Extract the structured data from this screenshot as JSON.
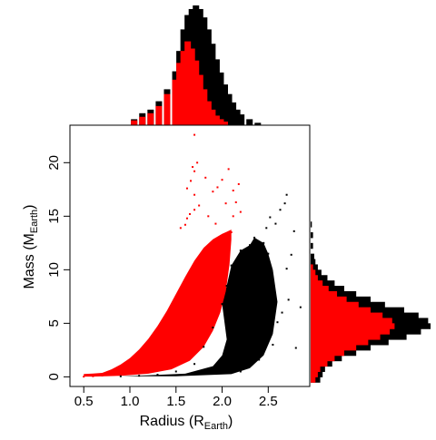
{
  "colors": {
    "set_a": "#ff0000",
    "set_b": "#000000"
  },
  "chart_data": [
    {
      "type": "scatter",
      "xlabel": "Radius",
      "xlabel_sub": "Earth",
      "ylabel": "Mass",
      "ylabel_sub": "Earth",
      "xlim": [
        0.35,
        2.95
      ],
      "ylim": [
        -0.9,
        23.5
      ],
      "xticks": [
        0.5,
        1.0,
        1.5,
        2.0,
        2.5
      ],
      "xtick_labels": [
        "0.5",
        "1.0",
        "1.5",
        "2.0",
        "2.5"
      ],
      "yticks": [
        0,
        5,
        10,
        15,
        20
      ],
      "ytick_labels": [
        "0",
        "5",
        "10",
        "15",
        "20"
      ],
      "grid": false,
      "series": [
        {
          "color": "#ff0000",
          "points": [
            [
              0.5,
              0.02
            ],
            [
              0.6,
              0.06
            ],
            [
              0.7,
              0.12
            ],
            [
              0.8,
              0.45
            ],
            [
              0.9,
              0.9
            ],
            [
              1.0,
              1.5
            ],
            [
              1.1,
              2.3
            ],
            [
              1.2,
              3.3
            ],
            [
              1.3,
              4.5
            ],
            [
              1.4,
              5.9
            ],
            [
              1.5,
              7.5
            ],
            [
              1.6,
              9.1
            ],
            [
              1.7,
              10.6
            ],
            [
              1.8,
              11.8
            ],
            [
              1.9,
              12.6
            ],
            [
              2.0,
              13.1
            ],
            [
              2.05,
              13.3
            ],
            [
              2.1,
              13.5
            ],
            [
              1.55,
              13.9
            ],
            [
              1.6,
              14.2
            ],
            [
              1.62,
              14.8
            ],
            [
              1.65,
              15.2
            ],
            [
              1.7,
              15.6
            ],
            [
              1.75,
              16.0
            ],
            [
              1.7,
              17.0
            ],
            [
              1.62,
              17.6
            ],
            [
              1.66,
              18.3
            ],
            [
              1.7,
              19.2
            ],
            [
              1.68,
              19.6
            ],
            [
              1.73,
              20.0
            ],
            [
              1.82,
              18.6
            ],
            [
              1.9,
              17.3
            ],
            [
              1.95,
              17.7
            ],
            [
              2.0,
              18.4
            ],
            [
              2.07,
              19.4
            ],
            [
              2.12,
              17.4
            ],
            [
              2.15,
              16.3
            ],
            [
              2.18,
              18.0
            ],
            [
              2.2,
              15.4
            ],
            [
              2.12,
              15.0
            ],
            [
              2.04,
              16.2
            ],
            [
              1.85,
              15.0
            ],
            [
              1.93,
              14.3
            ],
            [
              1.7,
              22.6
            ]
          ]
        },
        {
          "color": "#000000",
          "points": [
            [
              0.9,
              0.05
            ],
            [
              1.1,
              0.1
            ],
            [
              1.3,
              0.2
            ],
            [
              1.5,
              0.5
            ],
            [
              1.7,
              1.2
            ],
            [
              1.8,
              2.8
            ],
            [
              1.9,
              4.6
            ],
            [
              2.0,
              6.8
            ],
            [
              2.05,
              8.5
            ],
            [
              2.1,
              10.4
            ],
            [
              2.2,
              11.8
            ],
            [
              2.3,
              12.3
            ],
            [
              2.35,
              13.0
            ],
            [
              2.45,
              12.5
            ],
            [
              2.5,
              11.5
            ],
            [
              2.2,
              0.5
            ],
            [
              2.3,
              1.0
            ],
            [
              2.4,
              1.6
            ],
            [
              2.55,
              3.0
            ],
            [
              2.6,
              5.1
            ],
            [
              2.65,
              6.0
            ],
            [
              2.72,
              7.2
            ],
            [
              2.7,
              10.1
            ],
            [
              2.58,
              14.3
            ],
            [
              2.63,
              15.6
            ],
            [
              2.7,
              17.0
            ],
            [
              2.75,
              11.4
            ],
            [
              2.8,
              2.7
            ],
            [
              2.78,
              13.6
            ],
            [
              2.68,
              16.2
            ],
            [
              2.52,
              14.9
            ],
            [
              2.48,
              13.9
            ],
            [
              2.85,
              6.5
            ]
          ]
        }
      ]
    },
    {
      "type": "bar",
      "orientation": "vertical",
      "axis": "Radius",
      "x_range": [
        0.55,
        3.25
      ],
      "bin_width": 0.1,
      "series": [
        {
          "color": "#000000",
          "bins": [
            [
              0.8,
              0.05
            ],
            [
              0.9,
              0.1
            ],
            [
              1.0,
              0.13
            ],
            [
              1.1,
              0.2
            ],
            [
              1.2,
              0.3
            ],
            [
              1.3,
              0.45
            ],
            [
              1.35,
              0.62
            ],
            [
              1.4,
              0.8
            ],
            [
              1.45,
              0.92
            ],
            [
              1.5,
              0.97
            ],
            [
              1.55,
              1.0
            ],
            [
              1.6,
              0.97
            ],
            [
              1.65,
              0.9
            ],
            [
              1.7,
              0.8
            ],
            [
              1.75,
              0.68
            ],
            [
              1.8,
              0.55
            ],
            [
              1.85,
              0.44
            ],
            [
              1.9,
              0.34
            ],
            [
              1.95,
              0.26
            ],
            [
              2.0,
              0.19
            ],
            [
              2.05,
              0.13
            ],
            [
              2.1,
              0.09
            ],
            [
              2.2,
              0.05
            ],
            [
              2.3,
              0.02
            ]
          ]
        },
        {
          "color": "#ff0000",
          "bins": [
            [
              0.8,
              0.04
            ],
            [
              0.9,
              0.07
            ],
            [
              1.0,
              0.1
            ],
            [
              1.1,
              0.16
            ],
            [
              1.2,
              0.26
            ],
            [
              1.3,
              0.38
            ],
            [
              1.35,
              0.52
            ],
            [
              1.4,
              0.62
            ],
            [
              1.45,
              0.7
            ],
            [
              1.5,
              0.64
            ],
            [
              1.55,
              0.54
            ],
            [
              1.6,
              0.42
            ],
            [
              1.65,
              0.3
            ],
            [
              1.7,
              0.2
            ],
            [
              1.75,
              0.13
            ],
            [
              1.8,
              0.08
            ],
            [
              1.85,
              0.05
            ],
            [
              1.9,
              0.03
            ]
          ]
        }
      ]
    },
    {
      "type": "bar",
      "orientation": "horizontal",
      "axis": "Mass",
      "y_range": [
        -0.9,
        23.5
      ],
      "bin_width": 0.5,
      "series": [
        {
          "color": "#000000",
          "bins": [
            [
              -0.25,
              0.08
            ],
            [
              0.25,
              0.1
            ],
            [
              0.75,
              0.12
            ],
            [
              1.25,
              0.18
            ],
            [
              1.75,
              0.26
            ],
            [
              2.25,
              0.38
            ],
            [
              2.75,
              0.5
            ],
            [
              3.25,
              0.65
            ],
            [
              3.75,
              0.8
            ],
            [
              4.25,
              0.92
            ],
            [
              4.75,
              1.0
            ],
            [
              5.25,
              0.98
            ],
            [
              5.75,
              0.9
            ],
            [
              6.25,
              0.78
            ],
            [
              6.75,
              0.62
            ],
            [
              7.25,
              0.5
            ],
            [
              7.75,
              0.38
            ],
            [
              8.25,
              0.28
            ],
            [
              8.75,
              0.2
            ],
            [
              9.25,
              0.14
            ],
            [
              9.75,
              0.09
            ],
            [
              10.25,
              0.06
            ],
            [
              10.75,
              0.04
            ],
            [
              11.25,
              0.03
            ],
            [
              12.25,
              0.02
            ],
            [
              13.25,
              0.02
            ],
            [
              14.25,
              0.01
            ]
          ]
        },
        {
          "color": "#ff0000",
          "bins": [
            [
              -0.25,
              0.04
            ],
            [
              0.25,
              0.06
            ],
            [
              0.75,
              0.08
            ],
            [
              1.25,
              0.14
            ],
            [
              1.75,
              0.2
            ],
            [
              2.25,
              0.28
            ],
            [
              2.75,
              0.38
            ],
            [
              3.25,
              0.48
            ],
            [
              3.75,
              0.58
            ],
            [
              4.25,
              0.66
            ],
            [
              4.75,
              0.7
            ],
            [
              5.25,
              0.68
            ],
            [
              5.75,
              0.6
            ],
            [
              6.25,
              0.5
            ],
            [
              6.75,
              0.4
            ],
            [
              7.25,
              0.3
            ],
            [
              7.75,
              0.22
            ],
            [
              8.25,
              0.15
            ],
            [
              8.75,
              0.1
            ],
            [
              9.25,
              0.06
            ],
            [
              9.75,
              0.04
            ],
            [
              10.25,
              0.02
            ]
          ]
        }
      ]
    }
  ]
}
